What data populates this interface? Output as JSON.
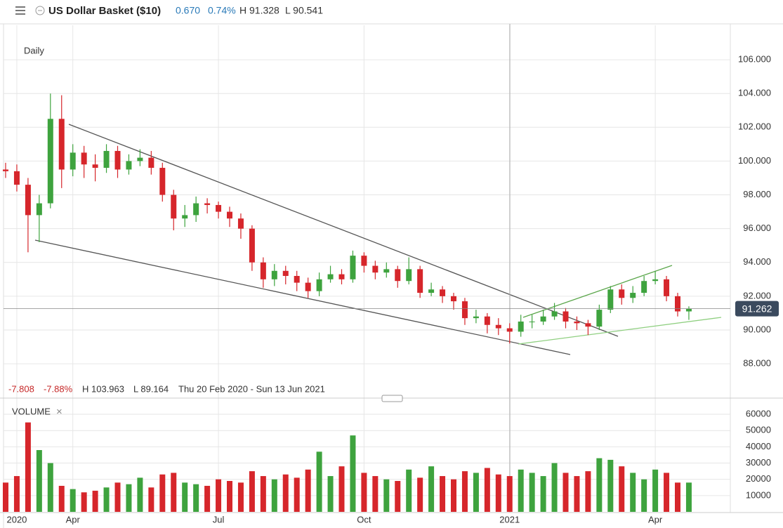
{
  "header": {
    "title": "US Dollar Basket ($10)",
    "change": "0.670",
    "change_pct": "0.74%",
    "high": "H 91.328",
    "low": "L 90.541"
  },
  "info": {
    "change": "-7.808",
    "change_pct": "-7.88%",
    "high": "H 103.963",
    "low": "L 89.164",
    "range": "Thu 20 Feb 2020 - Sun 13 Jun 2021"
  },
  "interval": "Daily",
  "volume_label": "VOLUME",
  "close_icon": "×",
  "chart_data": [
    {
      "type": "candlestick",
      "up_color": "#3ea33e",
      "down_color": "#d6262b",
      "open": [
        99.5,
        99.4,
        98.6,
        96.8,
        97.5,
        102.5,
        99.5,
        100.5,
        99.8,
        99.6,
        100.6,
        99.5,
        100.0,
        100.2,
        99.6,
        98.0,
        96.6,
        96.8,
        97.5,
        97.4,
        97.0,
        96.6,
        96.0,
        94.0,
        93.0,
        93.5,
        93.2,
        92.8,
        92.3,
        93.0,
        93.3,
        93.0,
        94.4,
        93.8,
        93.4,
        93.6,
        92.9,
        93.6,
        92.2,
        92.4,
        92.0,
        91.7,
        90.7,
        90.8,
        90.3,
        90.1,
        89.9,
        90.5,
        90.5,
        90.8,
        91.1,
        90.5,
        90.4,
        90.2,
        91.2,
        92.4,
        91.9,
        92.2,
        92.9,
        93.0,
        92.0,
        91.1
      ],
      "high": [
        99.9,
        99.8,
        99.0,
        98.0,
        104.0,
        103.9,
        101.0,
        100.9,
        100.4,
        101.0,
        100.9,
        100.4,
        100.7,
        100.6,
        99.9,
        98.3,
        97.4,
        97.9,
        97.8,
        97.6,
        97.3,
        96.9,
        96.2,
        94.3,
        93.9,
        93.8,
        93.5,
        93.1,
        93.4,
        93.8,
        93.6,
        94.7,
        94.6,
        94.1,
        94.0,
        93.8,
        94.3,
        93.8,
        92.8,
        92.6,
        92.2,
        91.9,
        91.2,
        91.0,
        90.7,
        90.4,
        90.9,
        90.9,
        91.2,
        91.6,
        91.3,
        90.8,
        90.6,
        91.5,
        92.6,
        92.7,
        92.6,
        93.2,
        93.5,
        93.2,
        92.2,
        91.4
      ],
      "low": [
        99.0,
        98.2,
        94.6,
        95.2,
        97.2,
        98.4,
        99.1,
        99.0,
        98.8,
        99.3,
        99.0,
        99.2,
        99.7,
        99.2,
        97.6,
        95.9,
        96.1,
        96.4,
        96.9,
        96.6,
        96.1,
        95.4,
        93.5,
        92.5,
        92.6,
        92.7,
        92.3,
        91.9,
        92.0,
        92.8,
        92.7,
        92.8,
        93.4,
        93.0,
        93.1,
        92.5,
        92.7,
        91.9,
        92.0,
        91.6,
        91.2,
        90.3,
        90.4,
        89.8,
        89.7,
        89.2,
        89.6,
        90.1,
        90.3,
        90.6,
        90.1,
        90.0,
        89.7,
        90.0,
        91.0,
        91.5,
        91.6,
        92.0,
        92.7,
        91.7,
        90.8,
        90.6
      ],
      "close": [
        99.4,
        98.6,
        96.8,
        97.5,
        102.5,
        99.5,
        100.5,
        99.8,
        99.6,
        100.6,
        99.5,
        100.0,
        100.2,
        99.6,
        98.0,
        96.6,
        96.8,
        97.5,
        97.4,
        97.0,
        96.6,
        96.0,
        94.0,
        93.0,
        93.5,
        93.2,
        92.8,
        92.3,
        93.0,
        93.3,
        93.0,
        94.4,
        93.8,
        93.4,
        93.6,
        92.9,
        93.6,
        92.2,
        92.4,
        92.0,
        91.7,
        90.7,
        90.8,
        90.3,
        90.1,
        89.9,
        90.5,
        90.5,
        90.8,
        91.1,
        90.5,
        90.4,
        90.2,
        91.2,
        92.4,
        91.9,
        92.2,
        92.9,
        93.0,
        92.0,
        91.1,
        91.262
      ],
      "ylim": [
        86.05,
        108.04
      ],
      "yticks": [
        {
          "value": 88,
          "label": "88.000"
        },
        {
          "value": 90,
          "label": "90.000"
        },
        {
          "value": 92,
          "label": "92.000"
        },
        {
          "value": 94,
          "label": "94.000"
        },
        {
          "value": 96,
          "label": "96.000"
        },
        {
          "value": 98,
          "label": "98.000"
        },
        {
          "value": 100,
          "label": "100.000"
        },
        {
          "value": 102,
          "label": "102.000"
        },
        {
          "value": 104,
          "label": "104.000"
        },
        {
          "value": 106,
          "label": "106.000"
        }
      ],
      "grid": true
    },
    {
      "type": "bar",
      "up_color": "#3ea33e",
      "down_color": "#d6262b",
      "categories": [
        null,
        "2020",
        null,
        null,
        null,
        null,
        "Apr",
        null,
        null,
        null,
        null,
        null,
        null,
        null,
        null,
        null,
        null,
        null,
        null,
        "Jul",
        null,
        null,
        null,
        null,
        null,
        null,
        null,
        null,
        null,
        null,
        null,
        null,
        "Oct",
        null,
        null,
        null,
        null,
        null,
        null,
        null,
        null,
        null,
        null,
        null,
        null,
        "2021",
        null,
        null,
        null,
        null,
        null,
        null,
        null,
        null,
        null,
        null,
        null,
        null,
        "Apr",
        null,
        null,
        null
      ],
      "values": [
        18000,
        22000,
        55000,
        38000,
        30000,
        16000,
        14000,
        12000,
        13000,
        15000,
        18000,
        17000,
        21000,
        15000,
        23000,
        24000,
        18000,
        17000,
        16000,
        20000,
        19000,
        18000,
        25000,
        22000,
        20000,
        23000,
        21000,
        26000,
        37000,
        22000,
        28000,
        47000,
        24000,
        22000,
        20000,
        19000,
        26000,
        21000,
        28000,
        22000,
        20000,
        25000,
        24000,
        27000,
        23000,
        22000,
        26000,
        24000,
        22000,
        30000,
        24000,
        22000,
        25000,
        33000,
        32000,
        28000,
        24000,
        20000,
        26000,
        24000,
        18000,
        18000
      ],
      "ylim": [
        0,
        66500
      ],
      "yticks": [
        10000,
        20000,
        30000,
        40000,
        50000,
        60000
      ],
      "grid": true
    }
  ]
}
